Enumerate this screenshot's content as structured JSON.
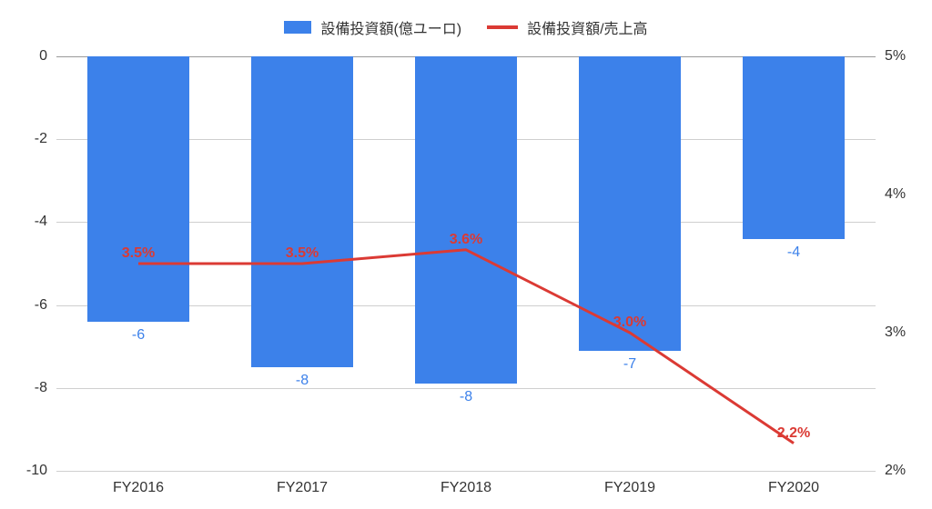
{
  "legend": {
    "bar_label": "設備投資額(億ユーロ)",
    "line_label": "設備投資額/売上高"
  },
  "chart": {
    "type": "bar+line",
    "background_color": "#ffffff",
    "grid_color": "#cfcfcf",
    "grid_color_zero": "#9a9a9a",
    "categories": [
      "FY2016",
      "FY2017",
      "FY2018",
      "FY2019",
      "FY2020"
    ],
    "bars": {
      "values": [
        -6.4,
        -7.5,
        -7.9,
        -7.1,
        -4.4
      ],
      "labels": [
        "-6",
        "-8",
        "-8",
        "-7",
        "-4"
      ],
      "color": "#3c81ea",
      "label_color": "#3c81ea",
      "bar_width_frac": 0.62,
      "label_fontsize": 16
    },
    "line": {
      "values_pct": [
        3.5,
        3.5,
        3.6,
        3.0,
        2.2
      ],
      "labels": [
        "3.5%",
        "3.5%",
        "3.6%",
        "3.0%",
        "2.2%"
      ],
      "color": "#db3a34",
      "label_color": "#db3a34",
      "stroke_width": 3,
      "label_fontsize": 16
    },
    "y_left": {
      "min": -10,
      "max": 0,
      "ticks": [
        0,
        -2,
        -4,
        -6,
        -8,
        -10
      ],
      "tick_labels": [
        "0",
        "-2",
        "-4",
        "-6",
        "-8",
        "-10"
      ],
      "fontsize": 16
    },
    "y_right": {
      "min": 2,
      "max": 5,
      "ticks": [
        5,
        4,
        3,
        2
      ],
      "tick_labels": [
        "5%",
        "4%",
        "3%",
        "2%"
      ],
      "fontsize": 16
    },
    "x_fontsize": 16
  }
}
